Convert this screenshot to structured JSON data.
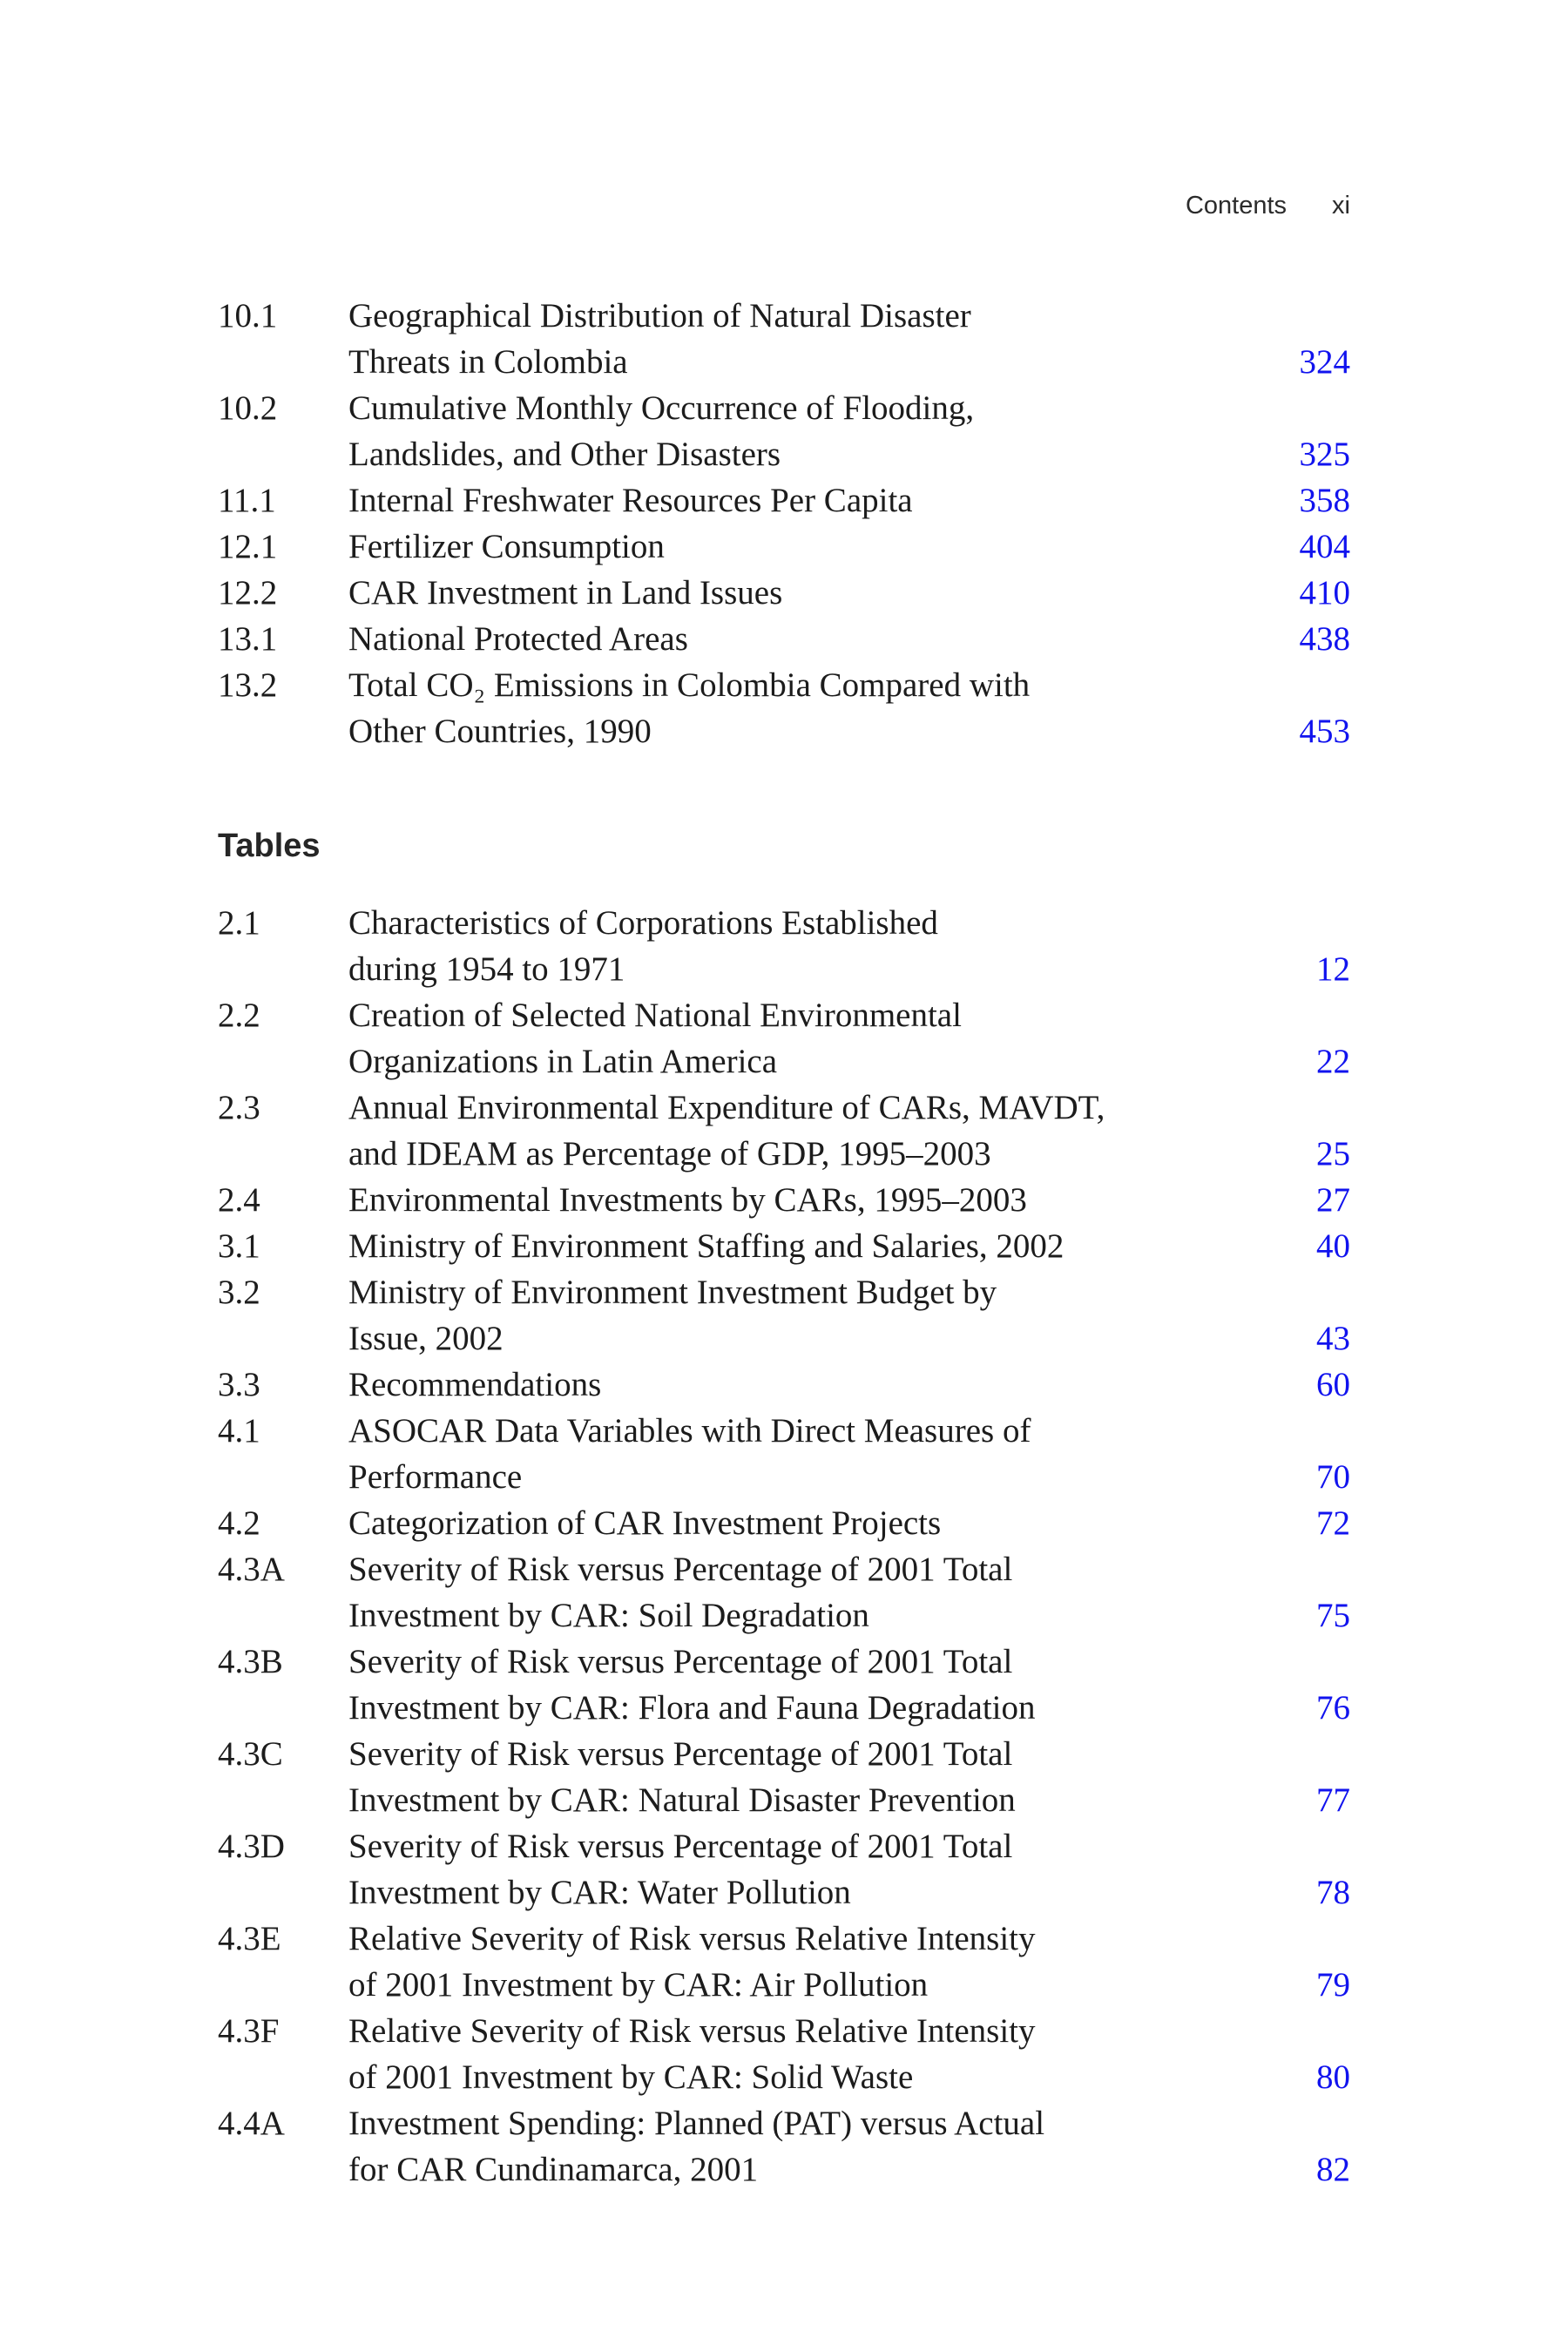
{
  "page": {
    "running_header": {
      "title": "Contents",
      "folio": "xi"
    },
    "colors": {
      "link_blue": "#1113ee",
      "body_text": "#1c1c1c",
      "background": "#ffffff"
    }
  },
  "figures_continued": {
    "entries": [
      {
        "id": "10.1",
        "lines": [
          "Geographical Distribution of Natural Disaster",
          "Threats in Colombia"
        ],
        "page": "324"
      },
      {
        "id": "10.2",
        "lines": [
          "Cumulative Monthly Occurrence of Flooding,",
          "Landslides, and Other Disasters"
        ],
        "page": "325"
      },
      {
        "id": "11.1",
        "lines": [
          "Internal Freshwater Resources Per Capita"
        ],
        "page": "358"
      },
      {
        "id": "12.1",
        "lines": [
          "Fertilizer Consumption"
        ],
        "page": "404"
      },
      {
        "id": "12.2",
        "lines": [
          "CAR Investment in Land Issues"
        ],
        "page": "410"
      },
      {
        "id": "13.1",
        "lines": [
          "National Protected Areas"
        ],
        "page": "438"
      },
      {
        "id": "13.2",
        "lines": [
          "Total CO₂ Emissions in Colombia Compared with",
          "Other Countries, 1990"
        ],
        "page": "453"
      }
    ]
  },
  "tables_section": {
    "heading": "Tables",
    "entries": [
      {
        "id": "2.1",
        "lines": [
          "Characteristics of Corporations Established",
          "during 1954 to 1971"
        ],
        "page": "12"
      },
      {
        "id": "2.2",
        "lines": [
          "Creation of Selected National Environmental",
          "Organizations in Latin America"
        ],
        "page": "22"
      },
      {
        "id": "2.3",
        "lines": [
          "Annual Environmental Expenditure of CARs, MAVDT,",
          "and IDEAM as Percentage of GDP, 1995–2003"
        ],
        "page": "25"
      },
      {
        "id": "2.4",
        "lines": [
          "Environmental Investments by CARs, 1995–2003"
        ],
        "page": "27"
      },
      {
        "id": "3.1",
        "lines": [
          "Ministry of Environment Staffing and Salaries, 2002"
        ],
        "page": "40"
      },
      {
        "id": "3.2",
        "lines": [
          "Ministry of Environment Investment Budget by",
          "Issue, 2002"
        ],
        "page": "43"
      },
      {
        "id": "3.3",
        "lines": [
          "Recommendations"
        ],
        "page": "60"
      },
      {
        "id": "4.1",
        "lines": [
          "ASOCAR Data Variables with Direct Measures of",
          "Performance"
        ],
        "page": "70"
      },
      {
        "id": "4.2",
        "lines": [
          "Categorization of CAR Investment Projects"
        ],
        "page": "72"
      },
      {
        "id": "4.3A",
        "lines": [
          "Severity of Risk versus Percentage of 2001 Total",
          "Investment by CAR: Soil Degradation"
        ],
        "page": "75"
      },
      {
        "id": "4.3B",
        "lines": [
          "Severity of Risk versus Percentage of 2001 Total",
          "Investment by CAR: Flora and Fauna Degradation"
        ],
        "page": "76"
      },
      {
        "id": "4.3C",
        "lines": [
          "Severity of Risk versus Percentage of 2001 Total",
          "Investment by CAR: Natural Disaster Prevention"
        ],
        "page": "77"
      },
      {
        "id": "4.3D",
        "lines": [
          "Severity of Risk versus Percentage of 2001 Total",
          "Investment by CAR: Water Pollution"
        ],
        "page": "78"
      },
      {
        "id": "4.3E",
        "lines": [
          "Relative Severity of Risk versus Relative Intensity",
          "of 2001 Investment by CAR: Air Pollution"
        ],
        "page": "79"
      },
      {
        "id": "4.3F",
        "lines": [
          "Relative Severity of Risk versus Relative Intensity",
          "of 2001 Investment by CAR: Solid Waste"
        ],
        "page": "80"
      },
      {
        "id": "4.4A",
        "lines": [
          "Investment Spending: Planned (PAT) versus Actual",
          "for CAR Cundinamarca, 2001"
        ],
        "page": "82"
      }
    ]
  }
}
